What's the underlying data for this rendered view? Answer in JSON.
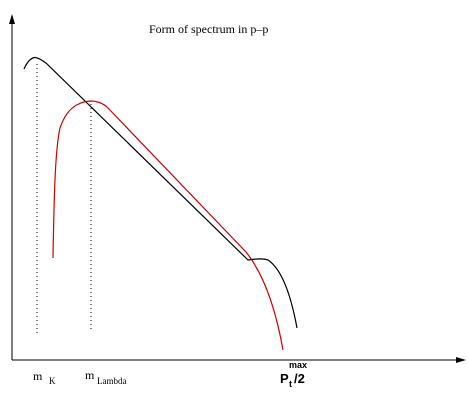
{
  "title": "Form of spectrum in p–p",
  "labels": {
    "m_k_base": "m",
    "m_k_sub": "K",
    "m_lambda_base": "m",
    "m_lambda_sub": "Lambda",
    "pt_base": "P",
    "pt_sub": "t",
    "pt_sup": "max",
    "pt_suffix": "/2"
  },
  "colors": {
    "axes": "#000000",
    "black_curve": "#000000",
    "red_curve": "#cc0000",
    "markers": "#000000"
  }
}
